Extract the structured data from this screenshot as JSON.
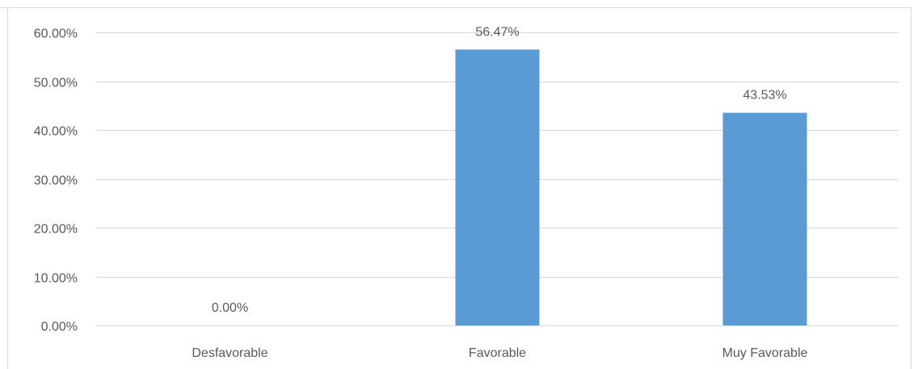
{
  "chart_data": {
    "type": "bar",
    "categories": [
      "Desfavorable",
      "Favorable",
      "Muy Favorable"
    ],
    "values": [
      0.0,
      56.47,
      43.53
    ],
    "data_labels": [
      "0.00%",
      "56.47%",
      "43.53%"
    ],
    "title": "",
    "xlabel": "",
    "ylabel": "",
    "ylim": [
      0,
      60
    ],
    "y_ticks": [
      0,
      10,
      20,
      30,
      40,
      50,
      60
    ],
    "y_tick_labels": [
      "0.00%",
      "10.00%",
      "20.00%",
      "30.00%",
      "40.00%",
      "50.00%",
      "60.00%"
    ],
    "grid": true,
    "legend": "none",
    "colors": {
      "bar": "#5b9bd5",
      "grid": "#d9d9d9",
      "text": "#595959"
    }
  }
}
